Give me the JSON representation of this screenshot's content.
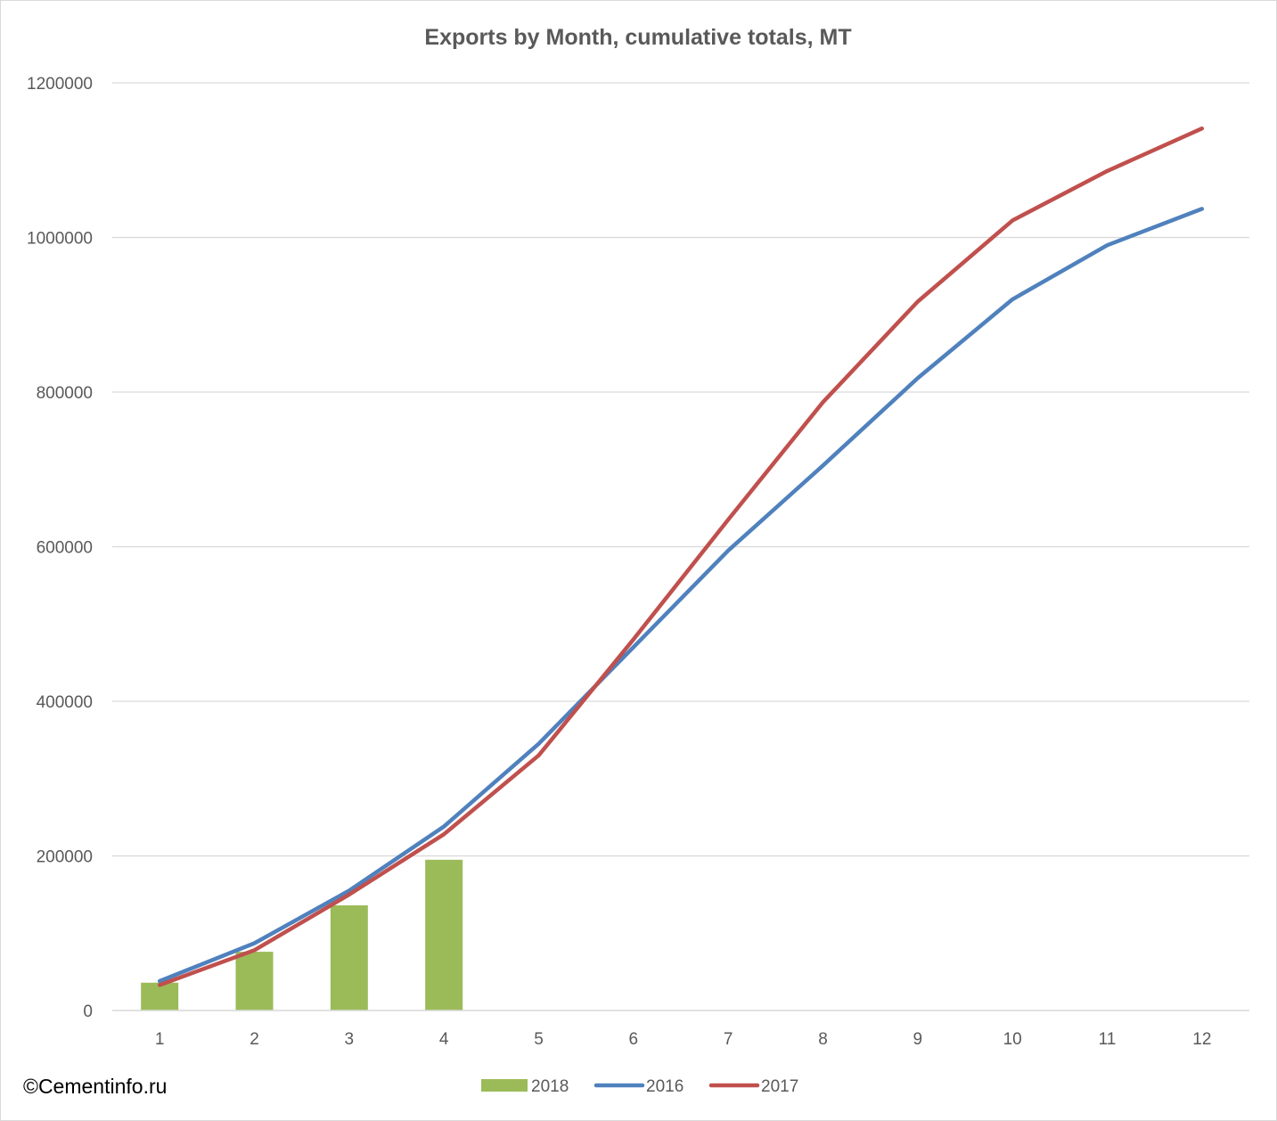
{
  "watermark": "©Cementinfo.ru",
  "colors": {
    "2018": "#9bbb59",
    "2016": "#4f81bd",
    "2017": "#c0504d",
    "grid": "#d9d9d9",
    "text": "#595959"
  },
  "chart_data": {
    "type": "bar",
    "title": "Exports by Month, cumulative totals, MT",
    "xlabel": "",
    "ylabel": "",
    "categories": [
      "1",
      "2",
      "3",
      "4",
      "5",
      "6",
      "7",
      "8",
      "9",
      "10",
      "11",
      "12"
    ],
    "ylim": [
      0,
      1200000
    ],
    "yticks": [
      "0",
      "200000",
      "400000",
      "600000",
      "800000",
      "1000000",
      "1200000"
    ],
    "grid": true,
    "legend_position": "bottom",
    "series": [
      {
        "name": "2018",
        "type": "bar",
        "values": [
          36000,
          76000,
          136000,
          195000,
          null,
          null,
          null,
          null,
          null,
          null,
          null,
          null
        ]
      },
      {
        "name": "2016",
        "type": "line",
        "values": [
          38000,
          87000,
          155000,
          238000,
          345000,
          470000,
          595000,
          705000,
          818000,
          920000,
          990000,
          1037000
        ]
      },
      {
        "name": "2017",
        "type": "line",
        "values": [
          33000,
          78000,
          150000,
          228000,
          330000,
          480000,
          635000,
          787000,
          917000,
          1022000,
          1086000,
          1141000
        ]
      }
    ]
  }
}
